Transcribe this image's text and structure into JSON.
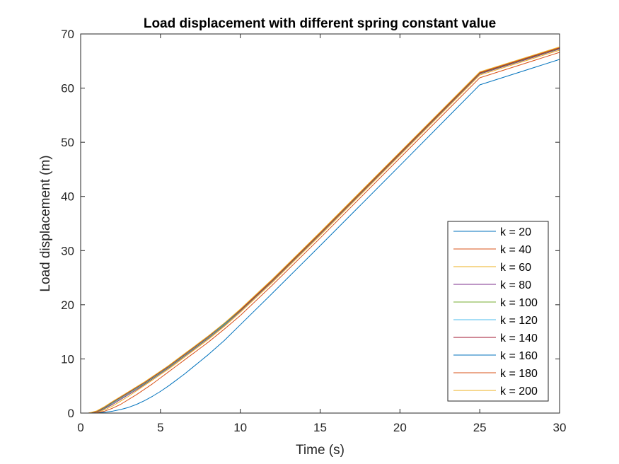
{
  "chart_data": {
    "type": "line",
    "title": "Load displacement with different spring constant value",
    "xlabel": "Time (s)",
    "ylabel": "Load displacement (m)",
    "xlim": [
      0,
      30
    ],
    "ylim": [
      0,
      70
    ],
    "xticks": [
      0,
      5,
      10,
      15,
      20,
      25,
      30
    ],
    "yticks": [
      0,
      10,
      20,
      30,
      40,
      50,
      60,
      70
    ],
    "grid": false,
    "legend_position": "bottom-right",
    "x": [
      0,
      0.5,
      1,
      1.5,
      2,
      2.5,
      3,
      3.5,
      4,
      4.5,
      5,
      5.5,
      6,
      6.5,
      7,
      7.5,
      8,
      9,
      10,
      12,
      15,
      20,
      25,
      30
    ],
    "series": [
      {
        "name": "k = 20",
        "color": "#0072BD",
        "values": [
          0,
          0,
          0.05,
          0.15,
          0.35,
          0.65,
          1.05,
          1.6,
          2.3,
          3.1,
          4.0,
          5.0,
          6.1,
          7.2,
          8.4,
          9.6,
          10.8,
          13.4,
          16.3,
          22.1,
          30.9,
          45.7,
          60.6,
          65.3
        ]
      },
      {
        "name": "k = 40",
        "color": "#D95319",
        "values": [
          0,
          0,
          0.1,
          0.35,
          0.9,
          1.6,
          2.5,
          3.4,
          4.4,
          5.4,
          6.5,
          7.6,
          8.7,
          9.8,
          10.9,
          12.0,
          13.1,
          15.5,
          18.0,
          23.6,
          32.3,
          47.1,
          61.9,
          66.6
        ]
      },
      {
        "name": "k = 60",
        "color": "#EDB120",
        "values": [
          0,
          0,
          0.15,
          0.6,
          1.3,
          2.2,
          3.1,
          4.1,
          5.1,
          6.1,
          7.1,
          8.1,
          9.2,
          10.3,
          11.4,
          12.5,
          13.6,
          16.0,
          18.6,
          24.1,
          32.8,
          47.6,
          62.4,
          67.0
        ]
      },
      {
        "name": "k = 80",
        "color": "#7E2F8E",
        "values": [
          0,
          0,
          0.2,
          0.8,
          1.6,
          2.5,
          3.4,
          4.3,
          5.3,
          6.3,
          7.3,
          8.3,
          9.4,
          10.5,
          11.6,
          12.7,
          13.8,
          16.2,
          18.8,
          24.3,
          33.0,
          47.8,
          62.6,
          67.2
        ]
      },
      {
        "name": "k = 100",
        "color": "#77AC30",
        "values": [
          0,
          0,
          0.25,
          0.9,
          1.8,
          2.7,
          3.6,
          4.5,
          5.4,
          6.4,
          7.4,
          8.4,
          9.5,
          10.6,
          11.7,
          12.8,
          13.9,
          16.3,
          18.9,
          24.4,
          33.1,
          47.9,
          62.7,
          67.3
        ]
      },
      {
        "name": "k = 120",
        "color": "#4DBEEE",
        "values": [
          0,
          0,
          0.3,
          1.0,
          1.9,
          2.8,
          3.7,
          4.6,
          5.5,
          6.5,
          7.5,
          8.5,
          9.6,
          10.7,
          11.8,
          12.9,
          14.0,
          16.4,
          19.0,
          24.5,
          33.2,
          48.0,
          62.8,
          67.4
        ]
      },
      {
        "name": "k = 140",
        "color": "#A2142F",
        "values": [
          0,
          0,
          0.3,
          1.05,
          2.0,
          2.9,
          3.8,
          4.7,
          5.6,
          6.6,
          7.6,
          8.6,
          9.7,
          10.8,
          11.9,
          13.0,
          14.1,
          16.5,
          19.0,
          24.5,
          33.2,
          48.0,
          62.8,
          67.4
        ]
      },
      {
        "name": "k = 160",
        "color": "#0072BD",
        "values": [
          0,
          0,
          0.35,
          1.1,
          2.05,
          3.0,
          3.9,
          4.8,
          5.7,
          6.7,
          7.7,
          8.7,
          9.8,
          10.9,
          12.0,
          13.1,
          14.2,
          16.5,
          19.1,
          24.6,
          33.3,
          48.1,
          62.9,
          67.5
        ]
      },
      {
        "name": "k = 180",
        "color": "#D95319",
        "values": [
          0,
          0,
          0.35,
          1.15,
          2.1,
          3.0,
          3.9,
          4.8,
          5.7,
          6.7,
          7.7,
          8.7,
          9.8,
          10.9,
          12.0,
          13.1,
          14.2,
          16.6,
          19.1,
          24.6,
          33.3,
          48.1,
          62.9,
          67.5
        ]
      },
      {
        "name": "k = 200",
        "color": "#EDB120",
        "values": [
          0,
          0,
          0.4,
          1.2,
          2.15,
          3.05,
          3.95,
          4.85,
          5.75,
          6.75,
          7.75,
          8.75,
          9.85,
          10.95,
          12.05,
          13.15,
          14.25,
          16.6,
          19.2,
          24.7,
          33.4,
          48.2,
          63.0,
          67.6
        ]
      }
    ]
  }
}
